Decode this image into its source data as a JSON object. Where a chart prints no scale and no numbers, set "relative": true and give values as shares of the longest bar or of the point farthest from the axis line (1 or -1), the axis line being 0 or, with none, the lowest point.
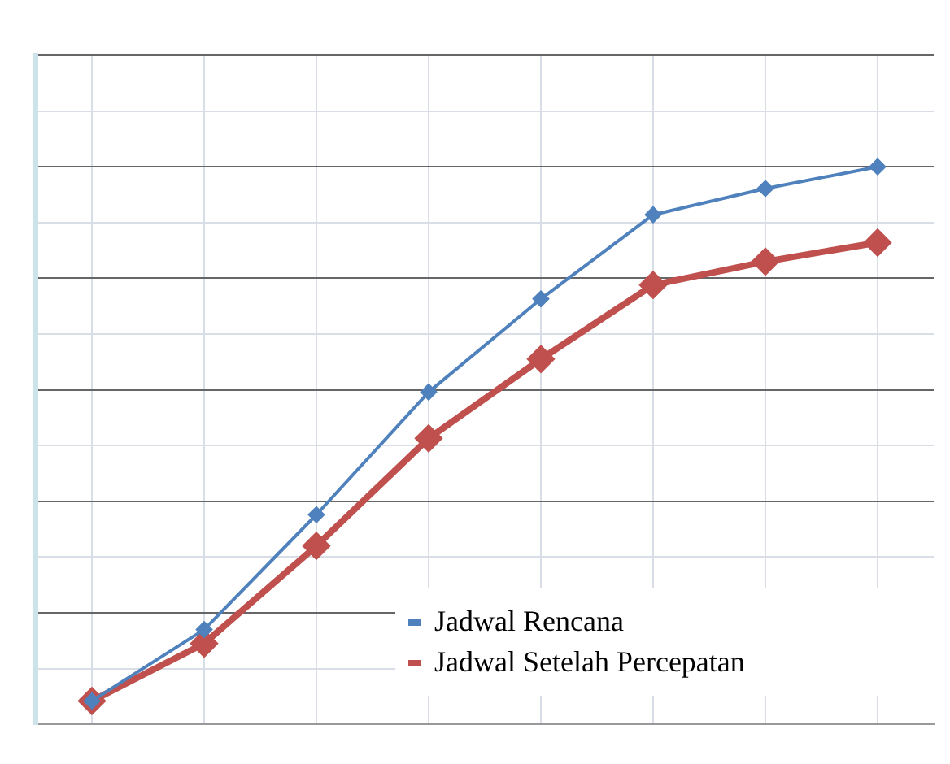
{
  "chart_data": {
    "type": "line",
    "relative": true,
    "categories": [
      null,
      null,
      null,
      null,
      null,
      null,
      null,
      null
    ],
    "series": [
      {
        "name": "Jadwal Rencana",
        "color": "#4f81bd",
        "values": [
          0.042,
          0.17,
          0.376,
          0.596,
          0.763,
          0.914,
          0.961,
          1
        ]
      },
      {
        "name": "Jadwal Setelah Percepatan",
        "color": "#c0504d",
        "values": [
          0.042,
          0.145,
          0.32,
          0.513,
          0.655,
          0.788,
          0.83,
          0.864
        ]
      }
    ],
    "marker": "diamond",
    "line_style": "solid",
    "grid": true,
    "legend": "bottom right"
  }
}
